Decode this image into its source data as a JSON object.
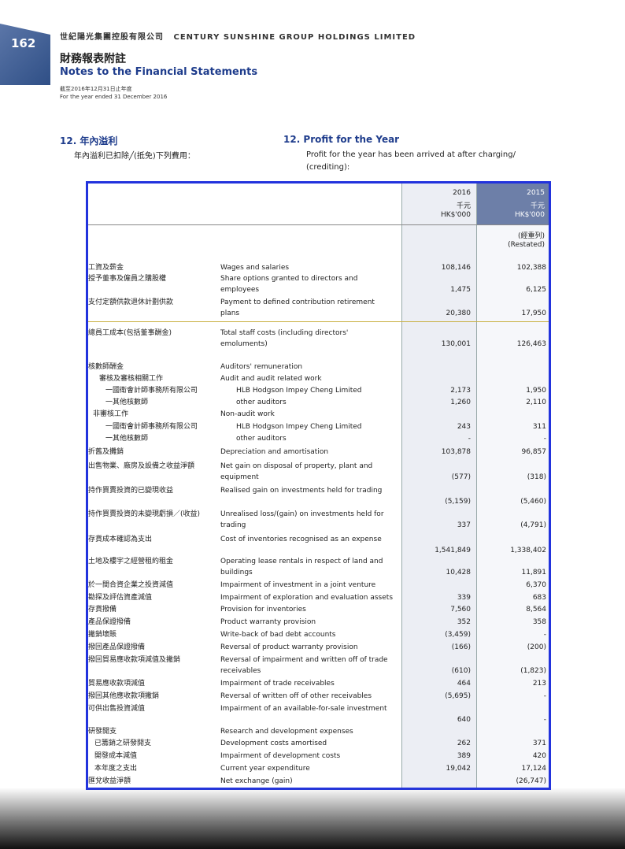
{
  "page_number": "162",
  "company": {
    "zh": "世紀陽光集團控股有限公司",
    "en": "CENTURY SUNSHINE GROUP HOLDINGS LIMITED"
  },
  "title": {
    "zh": "財務報表附註",
    "en": "Notes to the Financial Statements"
  },
  "period": {
    "zh": "截至2016年12月31日止年度",
    "en": "For the year ended 31 December 2016"
  },
  "section": {
    "zh": "12. 年內溢利",
    "en": "12. Profit for the Year",
    "intro_zh": "年內溢利已扣除╱(抵免)下列費用：",
    "intro_en": "Profit for the year has been arrived at after charging/ (crediting):"
  },
  "header": {
    "y2016": "2016",
    "y2015": "2015",
    "unit_zh": "千元",
    "unit_zh2": "千元",
    "unit_hk": "HK$'000",
    "unit_hk2": "HK$'000",
    "restated_zh": "(經重列)",
    "restated_en": "(Restated)"
  },
  "rows": [
    {
      "zh": "工資及薪金",
      "en": "Wages and salaries",
      "v16": "108,146",
      "v15": "102,388"
    },
    {
      "zh": "授予董事及僱員之購股權",
      "en": "Share options granted to directors and employees",
      "v16": "1,475",
      "v15": "6,125"
    },
    {
      "zh": "支付定額供款退休計劃供款",
      "en": "Payment to defined contribution retirement plans",
      "v16": "20,380",
      "v15": "17,950"
    },
    {
      "zh": "總員工成本(包括董事酬金)",
      "en": "Total staff costs (including directors' emoluments)",
      "v16": "130,001",
      "v15": "126,463"
    },
    {
      "zh": "核數師酬金",
      "en": "Auditors' remuneration",
      "v16": "",
      "v15": ""
    },
    {
      "zh": "審核及審核相關工作",
      "en": "Audit and audit related work",
      "v16": "",
      "v15": ""
    },
    {
      "zh": "一國衛會計師事務所有限公司",
      "en": "HLB Hodgson Impey Cheng Limited",
      "v16": "2,173",
      "v15": "1,950"
    },
    {
      "zh": "一其他核數師",
      "en": "other auditors",
      "v16": "1,260",
      "v15": "2,110"
    },
    {
      "zh": "非審核工作",
      "en": "Non-audit work",
      "v16": "",
      "v15": ""
    },
    {
      "zh": "一國衛會計師事務所有限公司",
      "en": "HLB Hodgson Impey Cheng Limited",
      "v16": "243",
      "v15": "311"
    },
    {
      "zh": "一其他核數師",
      "en": "other auditors",
      "v16": "-",
      "v15": "-"
    },
    {
      "zh": "折舊及攤銷",
      "en": "Depreciation and amortisation",
      "v16": "103,878",
      "v15": "96,857"
    },
    {
      "zh": "出售物業、廠房及設備之收益淨額",
      "en": "Net gain on disposal of property, plant and equipment",
      "v16": "(577)",
      "v15": "(318)"
    },
    {
      "zh": "持作買賣投資的已變現收益",
      "en": "Realised gain on investments held for trading",
      "v16": "(5,159)",
      "v15": "(5,460)"
    },
    {
      "zh": "持作買賣投資的未變現虧損／(收益)",
      "en": "Unrealised loss/(gain) on investments held for trading",
      "v16": "337",
      "v15": "(4,791)"
    },
    {
      "zh": "存貨成本確認為支出",
      "en": "Cost of inventories recognised as an expense",
      "v16": "1,541,849",
      "v15": "1,338,402"
    },
    {
      "zh": "土地及樓宇之經營租約租金",
      "en": "Operating lease rentals in respect of land and buildings",
      "v16": "10,428",
      "v15": "11,891"
    },
    {
      "zh": "於一間合資企業之投資減值",
      "en": "Impairment of investment in a joint venture",
      "v16": "",
      "v15": "6,370"
    },
    {
      "zh": "勘探及評估資產減值",
      "en": "Impairment of exploration and evaluation assets",
      "v16": "339",
      "v15": "683"
    },
    {
      "zh": "存貨撥備",
      "en": "Provision for inventories",
      "v16": "7,560",
      "v15": "8,564"
    },
    {
      "zh": "產品保證撥備",
      "en": "Product warranty provision",
      "v16": "352",
      "v15": "358"
    },
    {
      "zh": "撇銷壞賬",
      "en": "Write-back of bad debt accounts",
      "v16": "(3,459)",
      "v15": "-"
    },
    {
      "zh": "撥回產品保證撥備",
      "en": "Reversal of product warranty provision",
      "v16": "(166)",
      "v15": "(200)"
    },
    {
      "zh": "撥回貿易應收款項減值及撇銷",
      "en": "Reversal of impairment and written off of trade receivables",
      "v16": "(610)",
      "v15": "(1,823)"
    },
    {
      "zh": "貿易應收款項減值",
      "en": "Impairment of trade receivables",
      "v16": "464",
      "v15": "213"
    },
    {
      "zh": "撥回其他應收款項撇銷",
      "en": "Reversal of written off of other receivables",
      "v16": "(5,695)",
      "v15": "-"
    },
    {
      "zh": "可供出售投資減值",
      "en": "Impairment of an available-for-sale investment",
      "v16": "640",
      "v15": "-"
    },
    {
      "zh": "研發開支",
      "en": "Research and development expenses",
      "v16": "",
      "v15": ""
    },
    {
      "zh": "已籌銷之研發開支",
      "en": "Development costs amortised",
      "v16": "262",
      "v15": "371"
    },
    {
      "zh": "開發成本減值",
      "en": "Impairment of development costs",
      "v16": "389",
      "v15": "420"
    },
    {
      "zh": "本年度之支出",
      "en": "Current year expenditure",
      "v16": "19,042",
      "v15": "17,124"
    },
    {
      "zh": "匯兌收益淨額",
      "en": "Net exchange (gain)",
      "v16": "",
      "v15": "(26,747)"
    }
  ]
}
